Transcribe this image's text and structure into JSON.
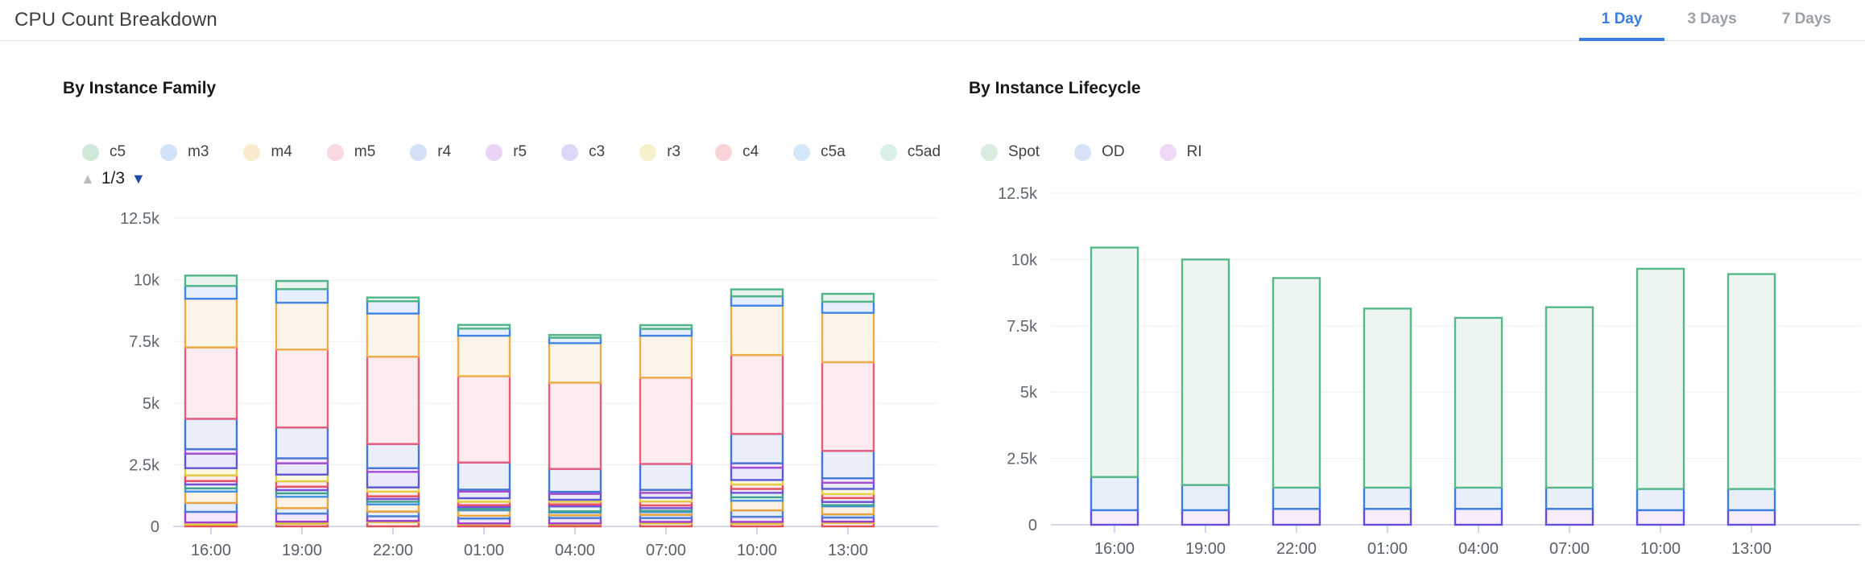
{
  "header": {
    "title": "CPU Count Breakdown",
    "tabs": [
      {
        "label": "1 Day",
        "active": true
      },
      {
        "label": "3 Days",
        "active": false
      },
      {
        "label": "7 Days",
        "active": false
      }
    ],
    "active_tab_color": "#3a7de2"
  },
  "charts": [
    {
      "title": "By Instance Family",
      "legend": [
        {
          "label": "c5",
          "color": "#cfe8da"
        },
        {
          "label": "m3",
          "color": "#d3e2f8"
        },
        {
          "label": "m4",
          "color": "#fae9cc"
        },
        {
          "label": "m5",
          "color": "#f8d9e0"
        },
        {
          "label": "r4",
          "color": "#d3e0f5"
        },
        {
          "label": "r5",
          "color": "#e9d4f5"
        },
        {
          "label": "c3",
          "color": "#dcd8f8"
        },
        {
          "label": "r3",
          "color": "#f7f1cb"
        },
        {
          "label": "c4",
          "color": "#f8d4d8"
        },
        {
          "label": "c5a",
          "color": "#d4e7f8"
        },
        {
          "label": "c5ad",
          "color": "#d9efe8"
        }
      ],
      "pager": {
        "label": "1/3",
        "up_color": "#b8bcc2",
        "down_color": "#1d4fa8"
      },
      "chart_data": {
        "type": "bar",
        "stacked": true,
        "categories": [
          "16:00",
          "19:00",
          "22:00",
          "01:00",
          "04:00",
          "07:00",
          "10:00",
          "13:00"
        ],
        "ylim": [
          0,
          12500
        ],
        "yticks": {
          "values": [
            0,
            2500,
            5000,
            7500,
            10000,
            12500
          ],
          "labels": [
            "0",
            "2.5k",
            "5k",
            "7.5k",
            "10k",
            "12.5k"
          ]
        },
        "legend_position": "top",
        "grid": true,
        "series_note": "bottom-to-top stacking; unlabeled-* segments belong to legend pages 2/3 not shown",
        "series": [
          {
            "name": "unlabeled-red",
            "fill": "#fbecec",
            "stroke": "#e34f56",
            "values": [
              70,
              110,
              170,
              80,
              80,
              120,
              110,
              140
            ]
          },
          {
            "name": "unlabeled-yellow",
            "fill": "#fcf8e0",
            "stroke": "#dfc83a",
            "values": [
              90,
              80,
              50,
              40,
              40,
              60,
              70,
              50
            ]
          },
          {
            "name": "unlabeled-violet",
            "fill": "#f2e7fb",
            "stroke": "#9e3fd0",
            "values": [
              430,
              330,
              190,
              200,
              220,
              160,
              210,
              170
            ]
          },
          {
            "name": "unlabeled-blue",
            "fill": "#e9eff9",
            "stroke": "#4a7fd8",
            "values": [
              360,
              220,
              190,
              110,
              110,
              130,
              260,
              130
            ]
          },
          {
            "name": "unlabeled-orange",
            "fill": "#fdf3e4",
            "stroke": "#e9a43e",
            "values": [
              460,
              460,
              290,
              220,
              110,
              110,
              390,
              320
            ]
          },
          {
            "name": "c5a",
            "fill": "#e7f1fc",
            "stroke": "#4193e2",
            "values": [
              130,
              140,
              110,
              50,
              50,
              50,
              140,
              50
            ]
          },
          {
            "name": "c5ad",
            "fill": "#e7f5f1",
            "stroke": "#43a08e",
            "values": [
              160,
              130,
              110,
              80,
              200,
              110,
              180,
              130
            ]
          },
          {
            "name": "unlabeled-purple",
            "fill": "#eee8fb",
            "stroke": "#7a4fd8",
            "values": [
              140,
              140,
              110,
              80,
              80,
              110,
              160,
              160
            ]
          },
          {
            "name": "c4",
            "fill": "#fcebed",
            "stroke": "#e8505e",
            "values": [
              230,
              220,
              190,
              140,
              110,
              160,
              180,
              160
            ]
          },
          {
            "name": "r3",
            "fill": "#fcf9e3",
            "stroke": "#e3cf45",
            "values": [
              290,
              270,
              170,
              140,
              80,
              150,
              180,
              210
            ]
          },
          {
            "name": "c3",
            "fill": "#eae9fb",
            "stroke": "#5a5ad9",
            "values": [
              590,
              460,
              630,
              270,
              240,
              200,
              500,
              250
            ]
          },
          {
            "name": "r5",
            "fill": "#f2e9fa",
            "stroke": "#a44fd2",
            "values": [
              180,
              200,
              150,
              80,
              80,
              120,
              180,
              180
            ]
          },
          {
            "name": "r4",
            "fill": "#e9eef9",
            "stroke": "#4478d8",
            "values": [
              1230,
              1250,
              980,
              1100,
              930,
              1050,
              1190,
              1110
            ]
          },
          {
            "name": "m5",
            "fill": "#fcecf0",
            "stroke": "#e85c7c",
            "values": [
              2900,
              3160,
              3540,
              3500,
              3500,
              3500,
              3200,
              3600
            ]
          },
          {
            "name": "m4",
            "fill": "#fdf5e9",
            "stroke": "#eead49",
            "values": [
              1970,
              1900,
              1750,
              1640,
              1600,
              1700,
              2000,
              2000
            ]
          },
          {
            "name": "m3",
            "fill": "#e8effc",
            "stroke": "#3f86e8",
            "values": [
              520,
              550,
              500,
              290,
              220,
              280,
              380,
              450
            ]
          },
          {
            "name": "c5",
            "fill": "#e9f4ee",
            "stroke": "#51b487",
            "values": [
              420,
              330,
              150,
              150,
              110,
              150,
              280,
              320
            ]
          }
        ]
      }
    },
    {
      "title": "By Instance Lifecycle",
      "legend": [
        {
          "label": "Spot",
          "color": "#d9ecdf"
        },
        {
          "label": "OD",
          "color": "#d7e2f8"
        },
        {
          "label": "RI",
          "color": "#eedaf5"
        }
      ],
      "chart_data": {
        "type": "bar",
        "stacked": true,
        "categories": [
          "16:00",
          "19:00",
          "22:00",
          "01:00",
          "04:00",
          "07:00",
          "10:00",
          "13:00"
        ],
        "ylim": [
          0,
          12500
        ],
        "yticks": {
          "values": [
            0,
            2500,
            5000,
            7500,
            10000,
            12500
          ],
          "labels": [
            "0",
            "2.5k",
            "5k",
            "7.5k",
            "10k",
            "12.5k"
          ]
        },
        "legend_position": "top",
        "grid": true,
        "series_note": "bottom-to-top stacking",
        "series": [
          {
            "name": "RI",
            "fill": "#f6ecfa",
            "stroke": "#6150dc",
            "values": [
              550,
              550,
              600,
              600,
              600,
              600,
              550,
              550
            ]
          },
          {
            "name": "OD",
            "fill": "#e9eefb",
            "stroke": "#3d7fe0",
            "values": [
              1250,
              950,
              800,
              800,
              800,
              800,
              800,
              800
            ]
          },
          {
            "name": "Spot",
            "fill": "#edf5f0",
            "stroke": "#57b98a",
            "values": [
              8650,
              8500,
              7900,
              6750,
              6400,
              6800,
              8300,
              8100
            ]
          }
        ]
      }
    }
  ]
}
